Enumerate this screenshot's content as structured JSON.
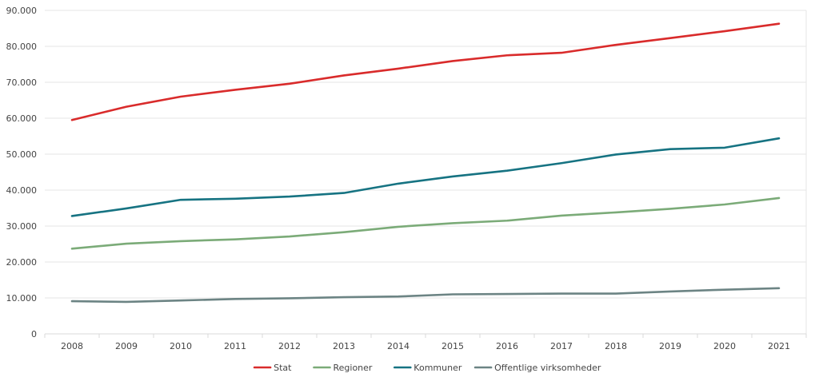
{
  "chart_data": {
    "type": "line",
    "title": "",
    "xlabel": "",
    "ylabel": "",
    "grid": true,
    "legend_position": "bottom",
    "ylim": [
      0,
      90000
    ],
    "y_ticks": [
      0,
      10000,
      20000,
      30000,
      40000,
      50000,
      60000,
      70000,
      80000,
      90000
    ],
    "y_tick_labels": [
      "0",
      "10.000",
      "20.000",
      "30.000",
      "40.000",
      "50.000",
      "60.000",
      "70.000",
      "80.000",
      "90.000"
    ],
    "categories": [
      "2008",
      "2009",
      "2010",
      "2011",
      "2012",
      "2013",
      "2014",
      "2015",
      "2016",
      "2017",
      "2018",
      "2019",
      "2020",
      "2021"
    ],
    "series": [
      {
        "name": "Stat",
        "color": "#d92b2b",
        "values": [
          59500,
          63200,
          66000,
          67900,
          69600,
          71900,
          73800,
          75900,
          77500,
          78200,
          80400,
          82300,
          84200,
          86300
        ]
      },
      {
        "name": "Regioner",
        "color": "#7bab78",
        "values": [
          23700,
          25100,
          25800,
          26300,
          27100,
          28300,
          29800,
          30800,
          31500,
          32900,
          33800,
          34800,
          36000,
          37800
        ]
      },
      {
        "name": "Kommuner",
        "color": "#167382",
        "values": [
          32800,
          34900,
          37300,
          37600,
          38200,
          39200,
          41800,
          43800,
          45400,
          47500,
          49900,
          51400,
          51800,
          54400
        ]
      },
      {
        "name": "Offentlige virksomheder",
        "color": "#6c8484",
        "values": [
          9100,
          8900,
          9300,
          9700,
          9900,
          10200,
          10400,
          11000,
          11100,
          11200,
          11200,
          11800,
          12300,
          12700
        ]
      }
    ]
  }
}
